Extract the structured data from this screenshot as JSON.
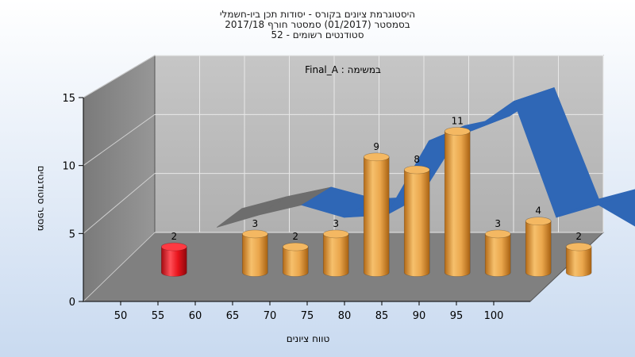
{
  "chart_data": {
    "type": "bar",
    "title_lines": [
      "היסטוגרמת ציונים בקורס - יסודות תכן ביו-חשמלי",
      "בסמסטר  (01/2017)  סמסטר חורף  2017/18",
      "סטודנטים רשומים - 52"
    ],
    "legend": "במשימה : Final_A",
    "xlabel": "טווח ציונים",
    "ylabel": "מספר סטודנטים",
    "x_ticks": [
      "50",
      "55",
      "60",
      "65",
      "70",
      "75",
      "80",
      "85",
      "90",
      "95",
      "100"
    ],
    "ylim": [
      0,
      15
    ],
    "y_ticks": [
      0,
      5,
      10,
      15
    ],
    "bins": [
      {
        "x": 52.5,
        "value": 2,
        "color": "red"
      },
      {
        "x": 62.5,
        "value": 3,
        "color": "orange"
      },
      {
        "x": 67.5,
        "value": 2,
        "color": "orange"
      },
      {
        "x": 72.5,
        "value": 3,
        "color": "orange"
      },
      {
        "x": 77.5,
        "value": 9,
        "color": "orange"
      },
      {
        "x": 82.5,
        "value": 8,
        "color": "orange"
      },
      {
        "x": 87.5,
        "value": 11,
        "color": "orange"
      },
      {
        "x": 92.5,
        "value": 3,
        "color": "orange"
      },
      {
        "x": 97.5,
        "value": 4,
        "color": "orange"
      },
      {
        "x": 102.5,
        "value": 2,
        "color": "orange"
      }
    ],
    "trend_line": {
      "x": [
        55,
        60,
        65,
        70,
        75,
        80,
        85,
        90,
        95,
        100,
        105
      ],
      "y": [
        2.2,
        3.2,
        4.0,
        3.0,
        3.2,
        9.2,
        10.0,
        12.4,
        3.0,
        4.0,
        2.0
      ]
    },
    "colors": {
      "bar_red": "#e8141c",
      "bar_orange": "#eba44a",
      "ribbon": "#2f67b6",
      "ribbon_shadow": "#6d6d6d",
      "back_wall": "#b8b8b8",
      "side_wall": "#8b8b8b",
      "floor": "#7f7f7f"
    },
    "grid": true,
    "projection": "3d"
  }
}
